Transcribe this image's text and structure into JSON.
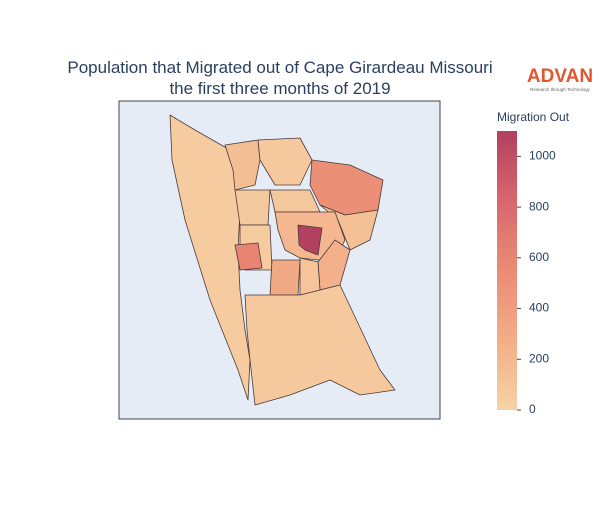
{
  "chart_data": {
    "type": "choropleth",
    "title": [
      "Population that Migrated out of Cape Girardeau Missouri",
      "the first three months of 2019"
    ],
    "logo": {
      "name": "ADVAN",
      "tagline": "Research through Technology"
    },
    "colorbar_title": "Migration Out",
    "zlim": [
      0,
      1100
    ],
    "zticks": [
      0,
      200,
      400,
      600,
      800,
      1000
    ],
    "colorscale": [
      "#f6d3a6",
      "#f3ad87",
      "#eb8b75",
      "#d8676d",
      "#b2405f"
    ],
    "values": [
      60,
      150,
      80,
      520,
      70,
      90,
      140,
      60,
      600,
      1100,
      200,
      300,
      250,
      80,
      110
    ]
  }
}
